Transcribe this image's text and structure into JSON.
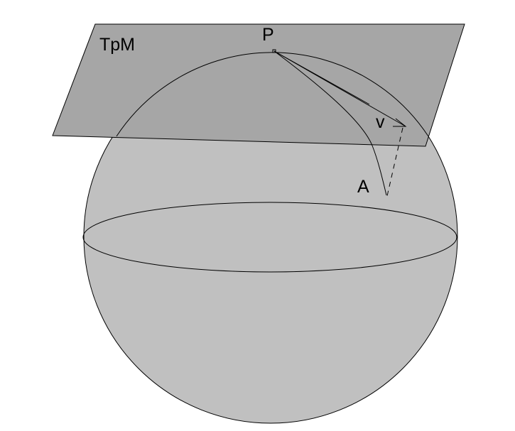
{
  "labels": {
    "tangent_plane": "TpM",
    "point_p": "P",
    "vector_v": "v",
    "point_a": "A"
  },
  "colors": {
    "background": "#ffffff",
    "sphere_fill": "#c0c0c0",
    "plane_fill": "#a6a6a6",
    "stroke": "#000000"
  }
}
